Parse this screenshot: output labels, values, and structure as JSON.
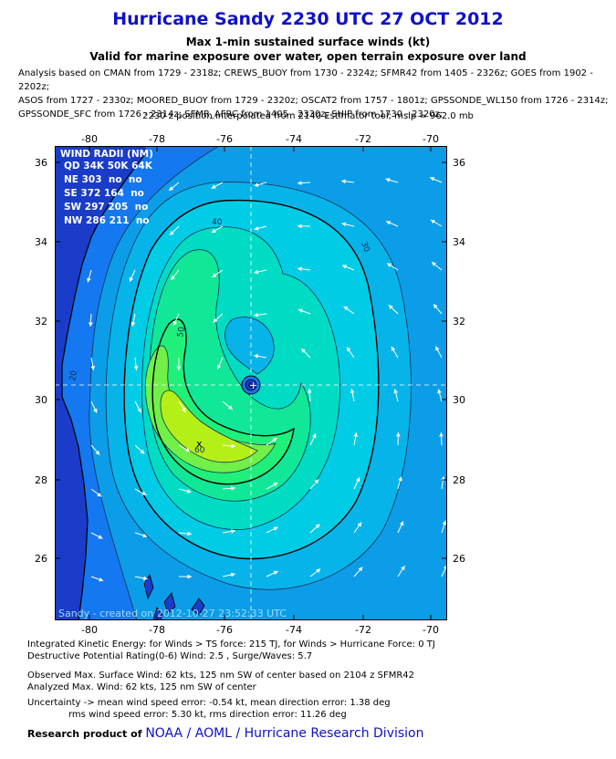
{
  "header": {
    "title": "Hurricane Sandy 2230 UTC 27 OCT 2012",
    "subtitle1": "Max 1-min sustained surface winds (kt)",
    "subtitle2": "Valid for marine exposure over water, open terrain exposure over land",
    "analysis_lines": [
      "Analysis based on CMAN from 1729 - 2318z; CREWS_BUOY from 1730 - 2324z; SFMR42 from 1405 - 2326z; GOES from 1902 - 2202z;",
      "ASOS from 1727 - 2330z; MOORED_BUOY from 1729 - 2320z; OSCAT2 from 1757 - 1801z; GPSSONDE_WL150 from 1726 - 2314z;",
      "GPSSONDE_SFC from 1726 - 2314z; SFMR_AFRC from 1405 - 2330z; SHIP from 1730 - 2320z;"
    ],
    "position_line": "2230 z position interpolated from 2140 Estimator tool; mslp = 962.0 mb"
  },
  "map": {
    "lon_ticks": [
      "-80",
      "-78",
      "-76",
      "-74",
      "-72",
      "-70"
    ],
    "lat_ticks": [
      "36",
      "34",
      "32",
      "30",
      "28",
      "26"
    ],
    "contour_labels": [
      "20",
      "30",
      "40",
      "50",
      "60"
    ],
    "center_marker": "+",
    "max_wind_marker": "x",
    "watermark": "Sandy - created on 2012-10-27 23:52:33 UTC",
    "colors": {
      "ocean_low": "#1478f0",
      "ring_20": "#0b9de8",
      "ring_25": "#07b4ea",
      "ring_30": "#00cce6",
      "ring_35": "#00dcc4",
      "ring_40": "#10e898",
      "ring_45": "#20f07a",
      "ring_50": "#70f048",
      "ring_55": "#b4f018",
      "land": "#1a3cc8"
    }
  },
  "wind_radii": {
    "title": "WIND RADII (NM)",
    "header": "QD 34K 50K 64K",
    "rows": [
      "NE 303  no  no",
      "SE 372 164  no",
      "SW 297 205  no",
      "NW 286 211  no"
    ]
  },
  "footer": {
    "ike": "Integrated Kinetic Energy: for Winds > TS force: 215 TJ, for Winds > Hurricane Force: 0 TJ",
    "dpr": "Destructive Potential Rating(0-6)  Wind: 2.5 , Surge/Waves: 5.7",
    "observed": "Observed Max. Surface Wind: 62 kts, 125 nm SW of center based on 2104 z SFMR42",
    "analyzed": "Analyzed Max. Wind: 62 kts, 125 nm  SW of center",
    "uncertainty1": "Uncertainty -> mean wind speed error:  -0.54 kt, mean direction error: 1.38 deg",
    "uncertainty2": "rms wind speed error: 5.30 kt, rms direction error: 11.26 deg",
    "credit_prefix": "Research product of",
    "credit_org": "NOAA  /  AOML  /  Hurricane Research Division"
  }
}
